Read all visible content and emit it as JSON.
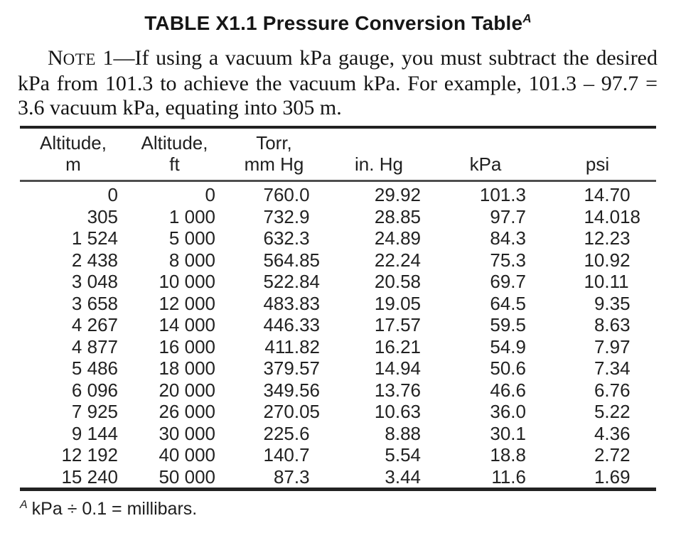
{
  "title": {
    "main": "TABLE X1.1 Pressure Conversion Table",
    "sup": "A"
  },
  "note": {
    "label_initial": "N",
    "label_small": "OTE",
    "body": " 1—If using a vacuum kPa gauge, you must subtract the desired kPa from 101.3 to achieve the vacuum kPa. For example, 101.3 – 97.7 = 3.6 vacuum kPa, equating into 305 m."
  },
  "table": {
    "columns": [
      {
        "line1": "Altitude,",
        "line2": "m"
      },
      {
        "line1": "Altitude,",
        "line2": "ft"
      },
      {
        "line1": "Torr,",
        "line2": "mm Hg"
      },
      {
        "line1": "",
        "line2": "in. Hg"
      },
      {
        "line1": "",
        "line2": "kPa"
      },
      {
        "line1": "",
        "line2": "psi"
      }
    ],
    "rows": [
      [
        "0",
        "0",
        "760.0",
        "29.92",
        "101.3",
        "14.70"
      ],
      [
        "305",
        "1 000",
        "732.9",
        "28.85",
        "97.7",
        "14.018"
      ],
      [
        "1 524",
        "5 000",
        "632.3",
        "24.89",
        "84.3",
        "12.23"
      ],
      [
        "2 438",
        "8 000",
        "564.85",
        "22.24",
        "75.3",
        "10.92"
      ],
      [
        "3 048",
        "10 000",
        "522.84",
        "20.58",
        "69.7",
        "10.11"
      ],
      [
        "3 658",
        "12 000",
        "483.83",
        "19.05",
        "64.5",
        "9.35"
      ],
      [
        "4 267",
        "14 000",
        "446.33",
        "17.57",
        "59.5",
        "8.63"
      ],
      [
        "4 877",
        "16 000",
        "411.82",
        "16.21",
        "54.9",
        "7.97"
      ],
      [
        "5 486",
        "18 000",
        "379.57",
        "14.94",
        "50.6",
        "7.34"
      ],
      [
        "6 096",
        "20 000",
        "349.56",
        "13.76",
        "46.6",
        "6.76"
      ],
      [
        "7 925",
        "26 000",
        "270.05",
        "10.63",
        "36.0",
        "5.22"
      ],
      [
        "9 144",
        "30 000",
        "225.6",
        "8.88",
        "30.1",
        "4.36"
      ],
      [
        "12 192",
        "40 000",
        "140.7",
        "5.54",
        "18.8",
        "2.72"
      ],
      [
        "15 240",
        "50 000",
        "87.3",
        "3.44",
        "11.6",
        "1.69"
      ]
    ]
  },
  "footnote": {
    "sup": "A",
    "text": "kPa ÷ 0.1 = millibars."
  }
}
